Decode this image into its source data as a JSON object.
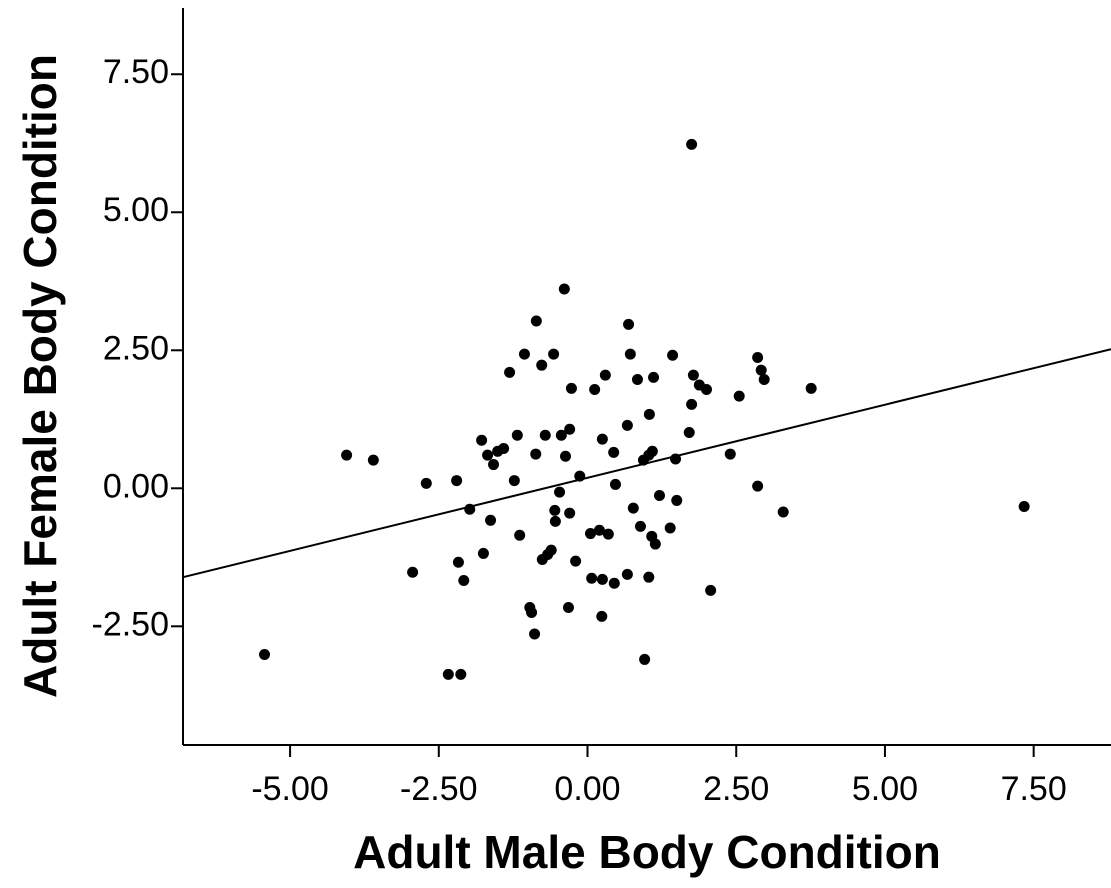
{
  "chart_data": {
    "type": "scatter",
    "xlabel": "Adult Male Body Condition",
    "ylabel": "Adult Female Body Condition",
    "xlim": [
      -6.8,
      8.8
    ],
    "ylim": [
      -4.65,
      8.7
    ],
    "xticks": [
      {
        "value": -5,
        "label": "-5.00"
      },
      {
        "value": -2.5,
        "label": "-2.50"
      },
      {
        "value": 0,
        "label": "0.00"
      },
      {
        "value": 2.5,
        "label": "2.50"
      },
      {
        "value": 5,
        "label": "5.00"
      },
      {
        "value": 7.5,
        "label": "7.50"
      }
    ],
    "yticks": [
      {
        "value": -2.5,
        "label": "-2.50"
      },
      {
        "value": 0,
        "label": "0.00"
      },
      {
        "value": 2.5,
        "label": "2.50"
      },
      {
        "value": 5,
        "label": "5.00"
      },
      {
        "value": 7.5,
        "label": "7.50"
      }
    ],
    "color": "#000000",
    "x": [
      -5.43,
      -4.05,
      -3.6,
      -2.94,
      -2.71,
      -2.34,
      -2.13,
      -2.2,
      -2.17,
      -2.08,
      -1.98,
      -1.78,
      -1.75,
      -1.68,
      -1.63,
      -1.58,
      -1.51,
      -1.41,
      -1.31,
      -1.23,
      -1.18,
      -1.14,
      -1.06,
      -0.97,
      -0.94,
      -0.89,
      -0.87,
      -0.86,
      -0.77,
      -0.76,
      -0.71,
      -0.67,
      -0.61,
      -0.57,
      -0.55,
      -0.54,
      -0.47,
      -0.44,
      -0.39,
      -0.37,
      -0.32,
      -0.3,
      -0.3,
      -0.27,
      -0.2,
      -0.13,
      0.05,
      0.07,
      0.12,
      0.2,
      0.24,
      0.25,
      0.25,
      0.3,
      0.35,
      0.44,
      0.45,
      0.47,
      0.67,
      0.67,
      0.69,
      0.72,
      0.77,
      0.84,
      0.89,
      0.94,
      0.96,
      1.03,
      1.03,
      1.04,
      1.08,
      1.09,
      1.11,
      1.14,
      1.21,
      1.39,
      1.43,
      1.48,
      1.5,
      1.71,
      1.75,
      1.75,
      1.78,
      1.88,
      2.0,
      2.07,
      2.4,
      2.55,
      2.86,
      2.86,
      2.92,
      2.97,
      3.29,
      3.76,
      7.34
    ],
    "values": [
      -3.01,
      0.6,
      0.51,
      -1.52,
      0.09,
      -3.37,
      -3.37,
      0.14,
      -1.34,
      -1.67,
      -0.38,
      0.87,
      -1.18,
      0.6,
      -0.58,
      0.43,
      0.67,
      0.72,
      2.1,
      0.14,
      0.96,
      -0.85,
      2.43,
      -2.16,
      -2.25,
      -2.64,
      0.62,
      3.03,
      2.23,
      -1.29,
      0.96,
      -1.2,
      -1.12,
      2.43,
      -0.4,
      -0.6,
      -0.07,
      0.96,
      3.61,
      0.58,
      -2.16,
      1.07,
      -0.45,
      1.81,
      -1.32,
      0.22,
      -0.82,
      -1.63,
      1.79,
      -0.76,
      -2.32,
      -1.65,
      0.89,
      2.05,
      -0.83,
      0.65,
      -1.72,
      0.07,
      -1.56,
      1.14,
      2.97,
      2.43,
      -0.36,
      1.97,
      -0.69,
      0.51,
      -3.1,
      0.6,
      -1.61,
      1.34,
      -0.87,
      0.67,
      2.01,
      -1.01,
      -0.13,
      -0.72,
      2.41,
      0.53,
      -0.22,
      1.01,
      1.52,
      6.23,
      2.05,
      1.87,
      1.79,
      -1.85,
      0.62,
      1.67,
      2.37,
      0.04,
      2.14,
      1.97,
      -0.43,
      1.81,
      -0.33
    ],
    "trend_line": {
      "x": [
        -6.8,
        8.8
      ],
      "values": [
        -1.61,
        2.52
      ]
    }
  }
}
